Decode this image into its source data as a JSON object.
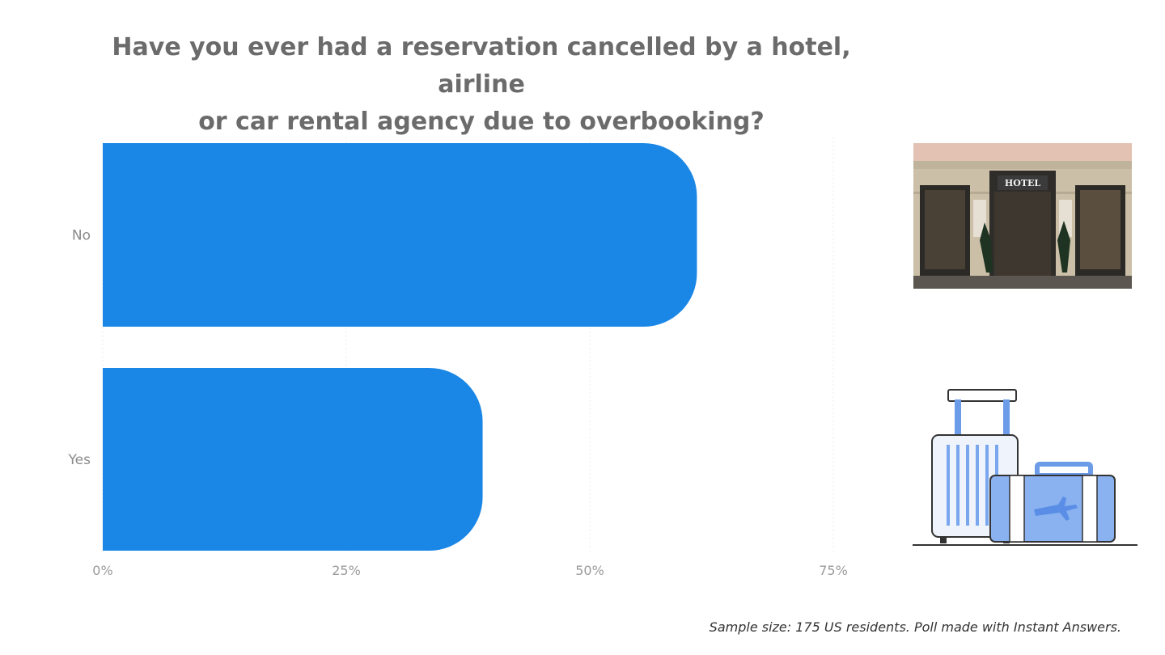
{
  "chart_data": {
    "type": "bar",
    "orientation": "horizontal",
    "title_lines": [
      "Have you ever had a reservation cancelled by a hotel, airline",
      "or car rental agency due to overbooking?"
    ],
    "categories": [
      "No",
      "Yes"
    ],
    "values": [
      61,
      39
    ],
    "xlim": [
      0,
      75
    ],
    "x_ticks": [
      "0%",
      "25%",
      "50%",
      "75%"
    ],
    "x_tick_values": [
      0,
      25,
      50,
      75
    ],
    "grid": true,
    "bar_color": "#1a87e6"
  },
  "footnote": "Sample size: 175 US residents. Poll made with Instant Answers.",
  "illustrations": {
    "photo_sign": "HOTEL",
    "photo_icon": "hotel-storefront-photo",
    "luggage_icon": "suitcases-icon"
  }
}
